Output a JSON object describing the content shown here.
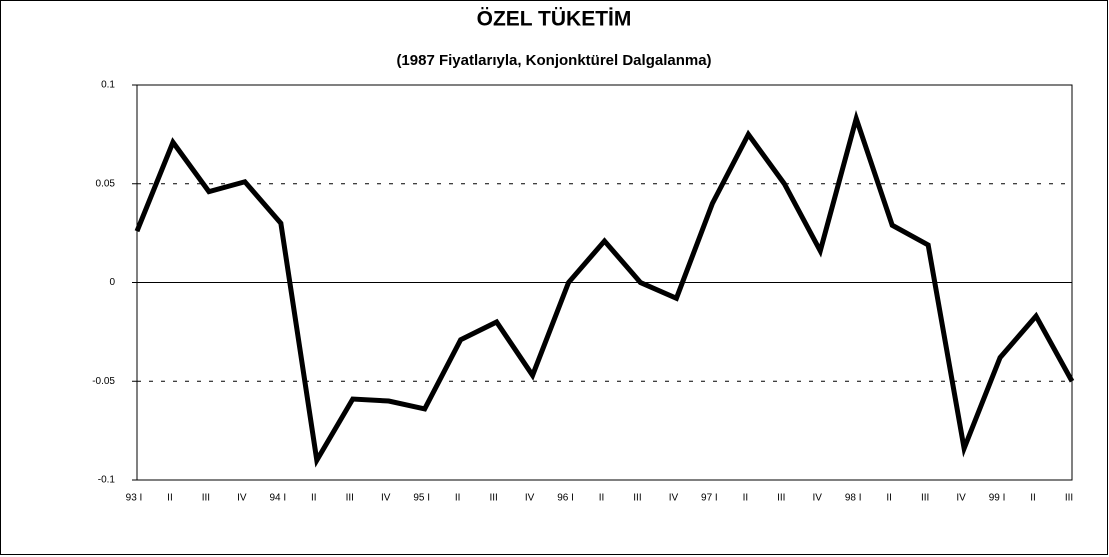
{
  "chart_data": {
    "type": "line",
    "title": "ÖZEL TÜKETİM",
    "subtitle": "(1987 Fiyatlarıyla, Konjonktürel Dalgalanma)",
    "categories": [
      "93 I",
      "II",
      "III",
      "IV",
      "94 I",
      "II",
      "III",
      "IV",
      "95 I",
      "II",
      "III",
      "IV",
      "96 I",
      "II",
      "III",
      "IV",
      "97 I",
      "II",
      "III",
      "IV",
      "98 I",
      "II",
      "III",
      "IV",
      "99 I",
      "II",
      "III"
    ],
    "series": [
      {
        "name": "Özel Tüketim",
        "color": "#000000",
        "values": [
          0.026,
          0.071,
          0.046,
          0.051,
          0.03,
          -0.09,
          -0.059,
          -0.06,
          -0.064,
          -0.029,
          -0.02,
          -0.047,
          0.0,
          0.021,
          0.0,
          -0.008,
          0.04,
          0.075,
          0.05,
          0.016,
          0.083,
          0.029,
          0.019,
          -0.084,
          -0.038,
          -0.017,
          -0.05
        ]
      }
    ],
    "ylim": [
      -0.1,
      0.1
    ],
    "yticks": [
      -0.1,
      -0.05,
      0,
      0.05,
      0.1
    ],
    "grid": true
  }
}
